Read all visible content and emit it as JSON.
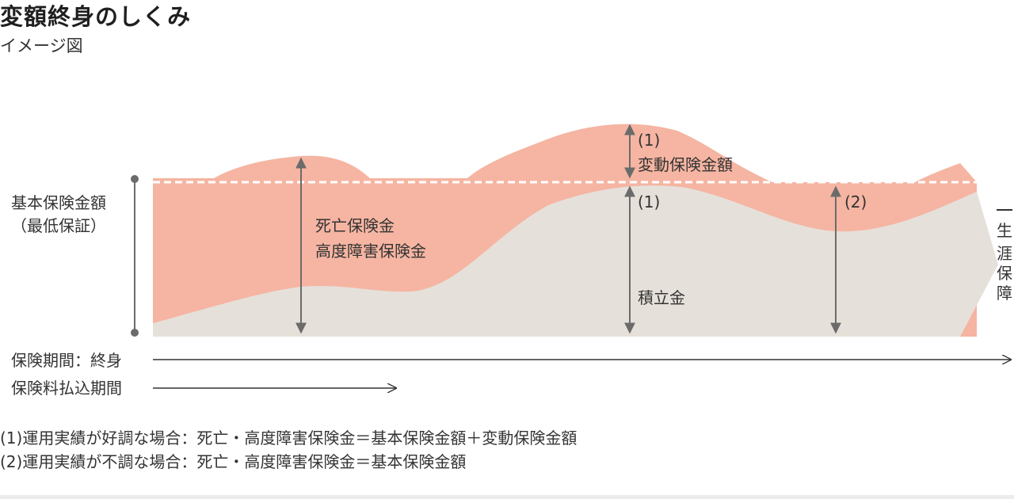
{
  "title": "変額終身のしくみ",
  "subtitle": "イメージ図",
  "labels": {
    "base_amount_line1": "基本保険金額",
    "base_amount_line2": "（最低保証）",
    "death_benefit_line1": "死亡保険金",
    "death_benefit_line2": "高度障害保険金",
    "variable_marker": "(1)",
    "variable_amount": "変動保険金額",
    "reserve_marker": "(1)",
    "reserve": "積立金",
    "case2_marker": "(2)",
    "lifetime_coverage": [
      "生",
      "涯",
      "保",
      "障"
    ],
    "insurance_period": "保険期間：終身",
    "premium_period": "保険料払込期間"
  },
  "footnotes": [
    "(1)運用実績が好調な場合：死亡・高度障害保険金＝基本保険金額＋変動保険金額",
    "(2)運用実績が不調な場合：死亡・高度障害保険金＝基本保険金額"
  ],
  "colors": {
    "coverage_fill": "#f5b5a2",
    "reserve_fill": "#e6e0da",
    "arrow": "#6b6b6b",
    "dashed_line": "#ffffff"
  }
}
